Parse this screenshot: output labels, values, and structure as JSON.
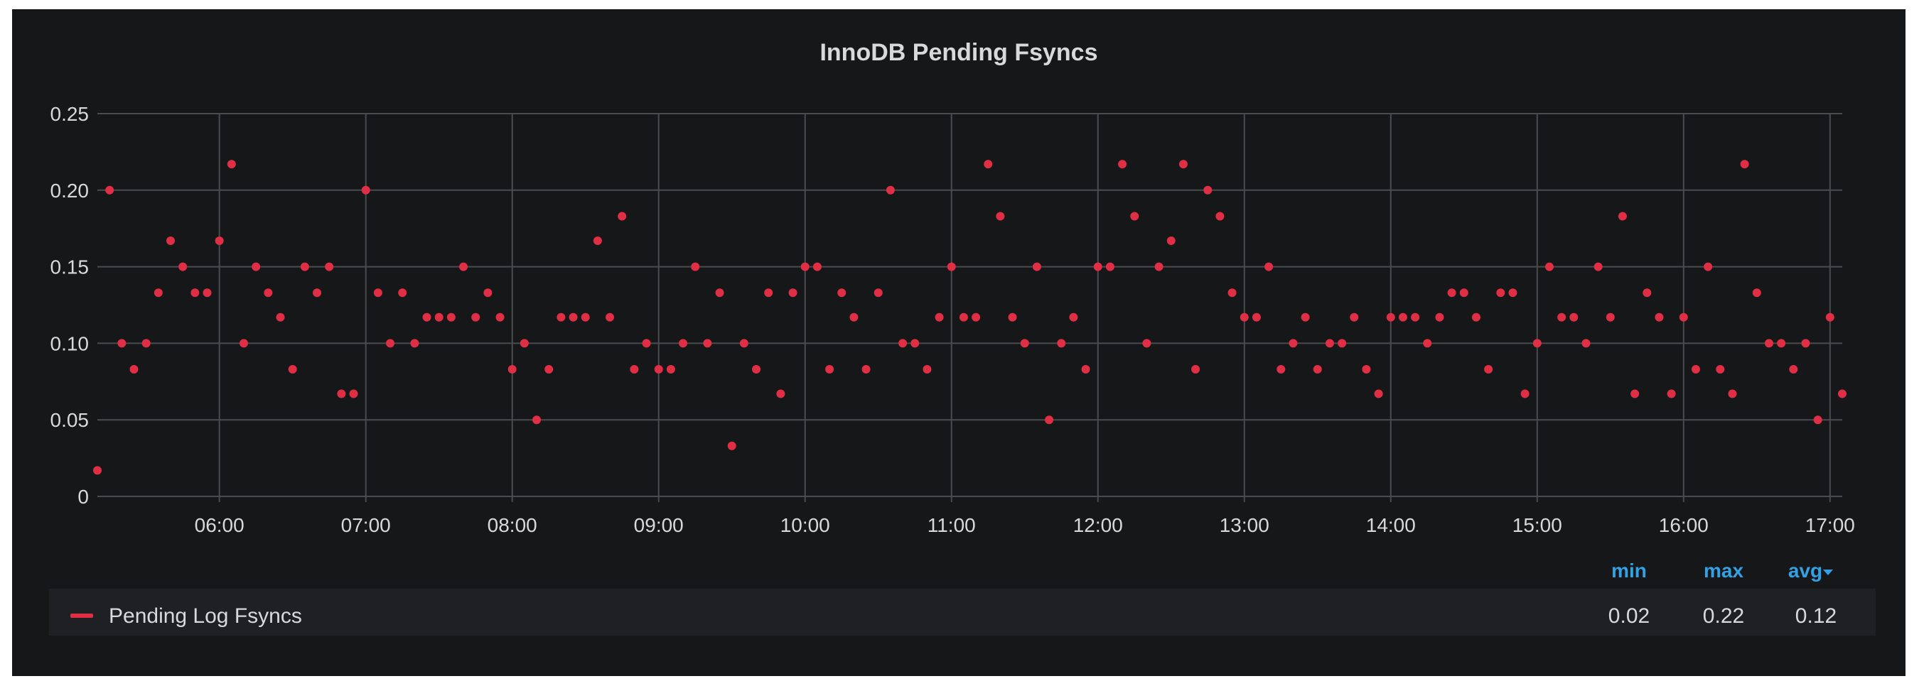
{
  "panel": {
    "title": "InnoDB Pending Fsyncs",
    "background": "#161719"
  },
  "chart_data": {
    "type": "scatter",
    "title": "InnoDB Pending Fsyncs",
    "xlabel": "",
    "ylabel": "",
    "x_start": "05:10",
    "x_step_minutes": 5,
    "xlim": [
      "05:10",
      "17:05"
    ],
    "ylim": [
      0,
      0.25
    ],
    "y_ticks": [
      "0",
      "0.05",
      "0.10",
      "0.15",
      "0.20",
      "0.25"
    ],
    "x_ticks": [
      "06:00",
      "07:00",
      "08:00",
      "09:00",
      "10:00",
      "11:00",
      "12:00",
      "13:00",
      "14:00",
      "15:00",
      "16:00",
      "17:00"
    ],
    "grid": true,
    "legend_placement": "bottom",
    "series": [
      {
        "name": "Pending Log Fsyncs",
        "color": "#e02f44",
        "values": [
          0.017,
          0.2,
          0.1,
          0.083,
          0.1,
          0.133,
          0.167,
          0.15,
          0.133,
          0.133,
          0.167,
          0.217,
          0.1,
          0.15,
          0.133,
          0.117,
          0.083,
          0.15,
          0.133,
          0.15,
          0.067,
          0.067,
          0.2,
          0.133,
          0.1,
          0.133,
          0.1,
          0.117,
          0.117,
          0.117,
          0.15,
          0.117,
          0.133,
          0.117,
          0.083,
          0.1,
          0.05,
          0.083,
          0.117,
          0.117,
          0.117,
          0.167,
          0.117,
          0.183,
          0.083,
          0.1,
          0.083,
          0.083,
          0.1,
          0.15,
          0.1,
          0.133,
          0.033,
          0.1,
          0.083,
          0.133,
          0.067,
          0.133,
          0.15,
          0.15,
          0.083,
          0.133,
          0.117,
          0.083,
          0.133,
          0.2,
          0.1,
          0.1,
          0.083,
          0.117,
          0.15,
          0.117,
          0.117,
          0.217,
          0.183,
          0.117,
          0.1,
          0.15,
          0.05,
          0.1,
          0.117,
          0.083,
          0.15,
          0.15,
          0.217,
          0.183,
          0.1,
          0.15,
          0.167,
          0.217,
          0.083,
          0.2,
          0.183,
          0.133,
          0.117,
          0.117,
          0.15,
          0.083,
          0.1,
          0.117,
          0.083,
          0.1,
          0.1,
          0.117,
          0.083,
          0.067,
          0.117,
          0.117,
          0.117,
          0.1,
          0.117,
          0.133,
          0.133,
          0.117,
          0.083,
          0.133,
          0.133,
          0.067,
          0.1,
          0.15,
          0.117,
          0.117,
          0.1,
          0.15,
          0.117,
          0.183,
          0.067,
          0.133,
          0.117,
          0.067,
          0.117,
          0.083,
          0.15,
          0.083,
          0.067,
          0.217,
          0.133,
          0.1,
          0.1,
          0.083,
          0.1,
          0.05,
          0.117,
          0.067
        ]
      }
    ]
  },
  "legend": {
    "headers": {
      "min": "min",
      "max": "max",
      "avg": "avg"
    },
    "sort_icon": "caret-down-icon",
    "header_color": "#33a2e5",
    "items": [
      {
        "name": "Pending Log Fsyncs",
        "min": "0.02",
        "max": "0.22",
        "avg": "0.12",
        "color": "#e02f44"
      }
    ]
  }
}
